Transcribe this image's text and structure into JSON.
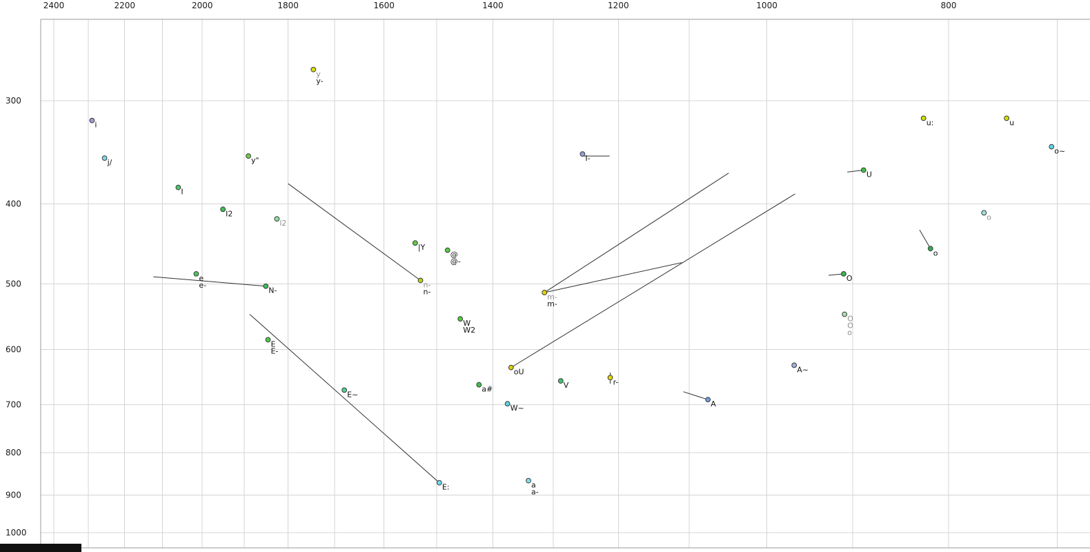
{
  "chart_data": {
    "type": "scatter",
    "title": "",
    "x_axis": {
      "scale": "log-reversed",
      "ticks": [
        2400,
        2200,
        2000,
        1800,
        1600,
        1400,
        1200,
        1000,
        800
      ],
      "gridlines": [
        2400,
        2300,
        2200,
        2100,
        2000,
        1900,
        1800,
        1700,
        1600,
        1500,
        1400,
        1300,
        1200,
        1100,
        1000,
        900,
        800,
        700
      ],
      "range": [
        2440,
        660
      ]
    },
    "y_axis": {
      "scale": "log",
      "ticks": [
        300,
        400,
        500,
        600,
        700,
        800,
        900,
        1000
      ],
      "gridlines": [
        300,
        400,
        500,
        600,
        700,
        800,
        900,
        1000
      ],
      "range": [
        240,
        1050
      ]
    },
    "points": [
      {
        "id": "i",
        "f2": 2290,
        "f1": 317,
        "color": "#9b9bd8",
        "labels": [
          {
            "text": "i",
            "gray": false
          }
        ]
      },
      {
        "id": "j-slash",
        "f2": 2255,
        "f1": 352,
        "color": "#7fd8e8",
        "labels": [
          {
            "text": "j/",
            "gray": false
          }
        ]
      },
      {
        "id": "cap-i",
        "f2": 2060,
        "f1": 382,
        "color": "#4ec96a",
        "labels": [
          {
            "text": "I",
            "gray": false
          }
        ]
      },
      {
        "id": "cap-i2",
        "f2": 1950,
        "f1": 406,
        "color": "#3fbf55",
        "labels": [
          {
            "text": "I2",
            "gray": false
          }
        ]
      },
      {
        "id": "l2",
        "f2": 1825,
        "f1": 417,
        "color": "#90dfa0",
        "labels": [
          {
            "text": "l2",
            "gray": true
          }
        ]
      },
      {
        "id": "y",
        "f2": 1745,
        "f1": 275,
        "color": "#dce000",
        "labels": [
          {
            "text": "y",
            "gray": true
          },
          {
            "text": "y-",
            "gray": false
          }
        ]
      },
      {
        "id": "y-umlaut",
        "f2": 1890,
        "f1": 350,
        "color": "#6fce4a",
        "labels": [
          {
            "text": "y\"",
            "gray": false
          }
        ]
      },
      {
        "id": "e",
        "f2": 2015,
        "f1": 486,
        "color": "#4cc75e",
        "labels": [
          {
            "text": "e",
            "gray": false
          },
          {
            "text": "e-",
            "gray": false
          }
        ]
      },
      {
        "id": "cap-n",
        "f2": 1850,
        "f1": 503,
        "color": "#3fbf5f",
        "labels": [
          {
            "text": "N-",
            "gray": false
          }
        ]
      },
      {
        "id": "cap-e",
        "f2": 1845,
        "f1": 584,
        "color": "#4ccf4c",
        "labels": [
          {
            "text": "E",
            "gray": false
          },
          {
            "text": "E-",
            "gray": false
          }
        ]
      },
      {
        "id": "cap-e-nasal",
        "f2": 1680,
        "f1": 672,
        "color": "#4fcf96",
        "labels": [
          {
            "text": "E~",
            "gray": false
          }
        ]
      },
      {
        "id": "cap-e-long",
        "f2": 1495,
        "f1": 870,
        "color": "#6fdde8",
        "labels": [
          {
            "text": "E:",
            "gray": false
          }
        ]
      },
      {
        "id": "bar-y",
        "f2": 1540,
        "f1": 446,
        "color": "#63cc42",
        "labels": [
          {
            "text": "|Y",
            "gray": false
          }
        ]
      },
      {
        "id": "schwa",
        "f2": 1480,
        "f1": 455,
        "color": "#58cc47",
        "labels": [
          {
            "text": "@",
            "gray": false
          },
          {
            "text": "@-",
            "gray": false
          }
        ]
      },
      {
        "id": "n",
        "f2": 1530,
        "f1": 495,
        "color": "#b4d414",
        "labels": [
          {
            "text": "n-",
            "gray": true
          },
          {
            "text": "n-",
            "gray": false
          }
        ]
      },
      {
        "id": "cap-w",
        "f2": 1457,
        "f1": 551,
        "color": "#55cc40",
        "labels": [
          {
            "text": "W",
            "gray": false
          },
          {
            "text": "W2",
            "gray": false
          }
        ]
      },
      {
        "id": "a-hash",
        "f2": 1424,
        "f1": 662,
        "color": "#3fbf4c",
        "labels": [
          {
            "text": "a#",
            "gray": false
          }
        ]
      },
      {
        "id": "cap-w-nasal",
        "f2": 1375,
        "f1": 698,
        "color": "#5fd2e2",
        "labels": [
          {
            "text": "W~",
            "gray": false
          }
        ]
      },
      {
        "id": "ou",
        "f2": 1369,
        "f1": 631,
        "color": "#dfd000",
        "labels": [
          {
            "text": "oU",
            "gray": false
          }
        ]
      },
      {
        "id": "a",
        "f2": 1340,
        "f1": 865,
        "color": "#7fe0ec",
        "labels": [
          {
            "text": "a",
            "gray": false
          },
          {
            "text": "a-",
            "gray": false
          }
        ]
      },
      {
        "id": "cap-v",
        "f2": 1288,
        "f1": 655,
        "color": "#3fc46f",
        "labels": [
          {
            "text": "V",
            "gray": false
          }
        ]
      },
      {
        "id": "m",
        "f2": 1314,
        "f1": 512,
        "color": "#e0d400",
        "labels": [
          {
            "text": "m-",
            "gray": true
          },
          {
            "text": "m-",
            "gray": false
          }
        ]
      },
      {
        "id": "cap-i-bar",
        "f2": 1254,
        "f1": 348,
        "color": "#8f9fd8",
        "labels": [
          {
            "text": "I-",
            "gray": false
          }
        ]
      },
      {
        "id": "r",
        "f2": 1212,
        "f1": 649,
        "color": "#e8d800",
        "labels": [
          {
            "text": "r-",
            "gray": false
          }
        ]
      },
      {
        "id": "cap-a",
        "f2": 1075,
        "f1": 690,
        "color": "#6f9fdd",
        "labels": [
          {
            "text": "A",
            "gray": false
          }
        ]
      },
      {
        "id": "cap-a-nasal",
        "f2": 967,
        "f1": 627,
        "color": "#9fafe0",
        "labels": [
          {
            "text": "A~",
            "gray": false
          }
        ]
      },
      {
        "id": "u-long",
        "f2": 825,
        "f1": 315,
        "color": "#cfe000",
        "labels": [
          {
            "text": "u:",
            "gray": false
          }
        ]
      },
      {
        "id": "u",
        "f2": 745,
        "f1": 315,
        "color": "#d4e000",
        "labels": [
          {
            "text": "u",
            "gray": false
          }
        ]
      },
      {
        "id": "o-nasal",
        "f2": 705,
        "f1": 341,
        "color": "#5fd2e8",
        "labels": [
          {
            "text": "o~",
            "gray": false
          }
        ]
      },
      {
        "id": "cap-u",
        "f2": 888,
        "f1": 364,
        "color": "#3fbf3f",
        "labels": [
          {
            "text": "U",
            "gray": false
          }
        ]
      },
      {
        "id": "o-light",
        "f2": 766,
        "f1": 410,
        "color": "#9fe0e0",
        "labels": [
          {
            "text": "o",
            "gray": true
          }
        ]
      },
      {
        "id": "o",
        "f2": 818,
        "f1": 453,
        "color": "#2fae4f",
        "labels": [
          {
            "text": "o",
            "gray": false
          }
        ]
      },
      {
        "id": "cap-o",
        "f2": 910,
        "f1": 486,
        "color": "#3fb450",
        "labels": [
          {
            "text": "O",
            "gray": false
          }
        ]
      },
      {
        "id": "cap-o-light",
        "f2": 909,
        "f1": 544,
        "color": "#a8e0b0",
        "labels": [
          {
            "text": "O",
            "gray": true
          },
          {
            "text": "O",
            "gray": true
          },
          {
            "text": "o",
            "gray": true
          }
        ]
      }
    ],
    "segments": [
      {
        "from": [
          1800,
          378
        ],
        "to": [
          1530,
          495
        ]
      },
      {
        "from": [
          2124,
          490
        ],
        "to": [
          1850,
          503
        ]
      },
      {
        "from": [
          1887,
          544
        ],
        "to": [
          1495,
          870
        ]
      },
      {
        "from": [
          1369,
          631
        ],
        "to": [
          966,
          389
        ]
      },
      {
        "from": [
          1314,
          512
        ],
        "to": [
          1048,
          367
        ]
      },
      {
        "from": [
          1314,
          512
        ],
        "to": [
          1110,
          471
        ]
      },
      {
        "from": [
          1254,
          350
        ],
        "to": [
          1213,
          350
        ]
      },
      {
        "from": [
          906,
          366
        ],
        "to": [
          888,
          364
        ]
      },
      {
        "from": [
          927,
          488
        ],
        "to": [
          910,
          486
        ]
      },
      {
        "from": [
          829,
          430
        ],
        "to": [
          818,
          453
        ]
      },
      {
        "from": [
          1108,
          675
        ],
        "to": [
          1075,
          690
        ]
      },
      {
        "from": [
          1212,
          640
        ],
        "to": [
          1212,
          660
        ]
      }
    ]
  }
}
